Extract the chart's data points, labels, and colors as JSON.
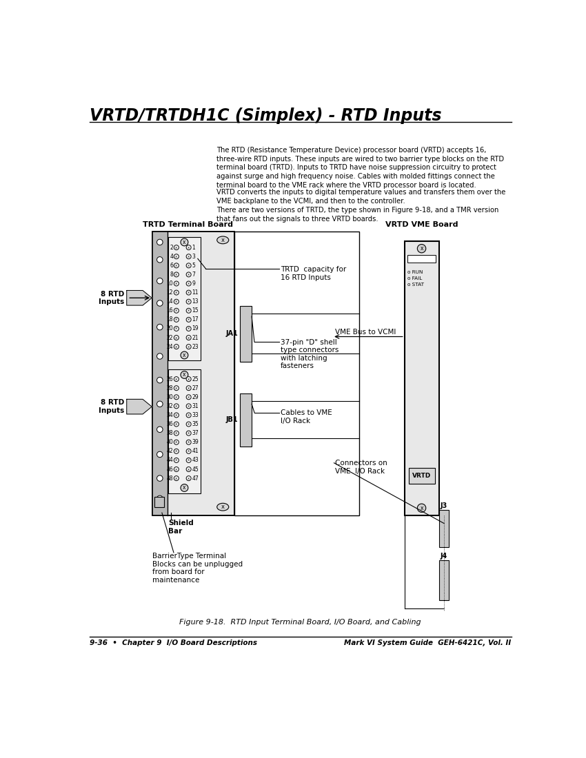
{
  "title": "VRTD/TRTDH1C (Simplex) - RTD Inputs",
  "body_text_1": "The RTD (Resistance Temperature Device) processor board (VRTD) accepts 16,\nthree-wire RTD inputs. These inputs are wired to two barrier type blocks on the RTD\nterminal board (TRTD). Inputs to TRTD have noise suppression circuitry to protect\nagainst surge and high frequency noise. Cables with molded fittings connect the\nterminal board to the VME rack where the VRTD processor board is located.",
  "body_text_2": "VRTD converts the inputs to digital temperature values and transfers them over the\nVME backplane to the VCMI, and then to the controller.",
  "body_text_3": "There are two versions of TRTD, the type shown in Figure 9-18, and a TMR version\nthat fans out the signals to three VRTD boards.",
  "label_trtd": "TRTD Terminal Board",
  "label_vrtd": "VRTD VME Board",
  "label_8rtd_top": "8 RTD\nInputs",
  "label_8rtd_bot": "8 RTD\nInputs",
  "label_trtd_capacity": "TRTD  capacity for\n16 RTD Inputs",
  "label_ja1": "JA1",
  "label_jb1": "JB1",
  "label_37pin": "37-pin \"D\" shell\ntype connectors\nwith latching\nfasteners",
  "label_cables": "Cables to VME\nI/O Rack",
  "label_vme_bus": "VME Bus to VCMI",
  "label_connectors": "Connectors on\nVME  I/O Rack",
  "label_j3": "J3",
  "label_j4": "J4",
  "label_shield": "Shield\nBar",
  "label_barrier": "BarrierType Terminal\nBlocks can be unplugged\nfrom board for\nmaintenance",
  "label_vrtd_chip": "VRTD",
  "label_run": "o RUN",
  "label_fail": "o FAIL",
  "label_stat": "o STAT",
  "figure_caption": "Figure 9-18.  RTD Input Terminal Board, I/O Board, and Cabling",
  "footer_left": "9-36  •  Chapter 9  I/O Board Descriptions",
  "footer_right": "Mark VI System Guide  GEH-6421C, Vol. II",
  "bg_color": "#ffffff",
  "text_color": "#000000"
}
